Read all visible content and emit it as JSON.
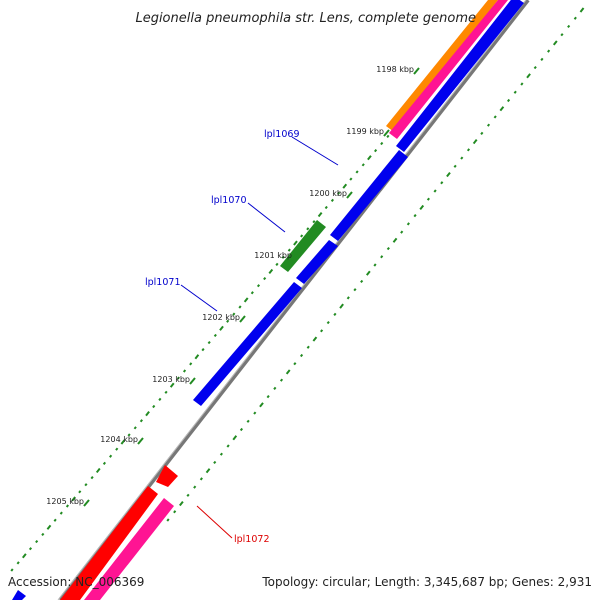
{
  "title": "Legionella pneumophila str. Lens, complete genome",
  "footer": {
    "accession": "Accession: NC_006369",
    "summary": "Topology: circular; Length: 3,345,687 bp; Genes: 2,931"
  },
  "ticks": [
    {
      "label": "1198 kbp"
    },
    {
      "label": "1199 kbp"
    },
    {
      "label": "1200 kbp"
    },
    {
      "label": "1201 kbp"
    },
    {
      "label": "1202 kbp"
    },
    {
      "label": "1203 kbp"
    },
    {
      "label": "1204 kbp"
    },
    {
      "label": "1205 kbp"
    }
  ],
  "genes": [
    {
      "label": "lpl1069",
      "color": "#0000cc"
    },
    {
      "label": "lpl1070",
      "color": "#0000cc"
    },
    {
      "label": "lpl1071",
      "color": "#0000cc"
    },
    {
      "label": "lpl1072",
      "color": "#dd0000"
    }
  ],
  "colors": {
    "backbone": "#888888",
    "forward_cds": "#0000ee",
    "reverse_cds": "#ff0000",
    "rna": "#ff1493",
    "orange_feature": "#ff8800",
    "green_feature": "#228b22",
    "gc_dots": "#228b22"
  }
}
